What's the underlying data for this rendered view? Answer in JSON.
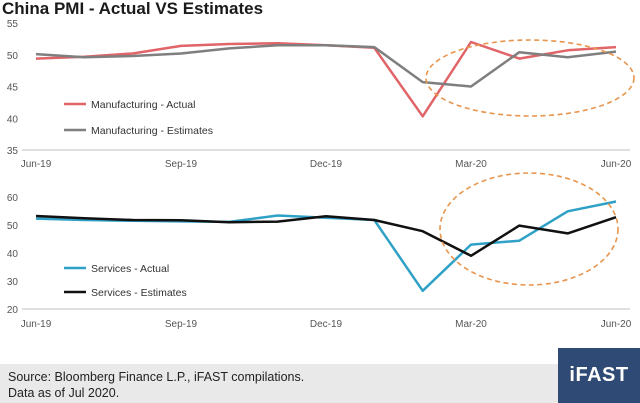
{
  "title": "China PMI - Actual VS Estimates",
  "footer": {
    "source_line": "Source: Bloomberg Finance L.P., iFAST compilations.",
    "date_line": "Data as of Jul 2020."
  },
  "logo_text": "iFAST",
  "colors": {
    "manufacturing_actual": "#e06468",
    "manufacturing_estimates": "#7f7f7f",
    "services_actual": "#2fa1c6",
    "services_estimates": "#111111",
    "highlight_ellipse": "#e8954e",
    "axis": "#bfbfbf",
    "footer_bg": "#e9e9e9",
    "logo_bg": "#2f4a74"
  },
  "chart_data": [
    {
      "type": "line",
      "x": [
        "Jun-19",
        "Jul-19",
        "Aug-19",
        "Sep-19",
        "Oct-19",
        "Nov-19",
        "Dec-19",
        "Jan-20",
        "Feb-20",
        "Mar-20",
        "Apr-20",
        "May-20",
        "Jun-20"
      ],
      "xticks": [
        "Jun-19",
        "Sep-19",
        "Dec-19",
        "Mar-20",
        "Jun-20"
      ],
      "ylim": [
        35,
        55
      ],
      "yticks": [
        35,
        40,
        45,
        50,
        55
      ],
      "legend_position": "left",
      "series": [
        {
          "name": "Manufacturing - Actual",
          "values": [
            49.4,
            49.7,
            50.2,
            51.4,
            51.7,
            51.8,
            51.5,
            51.1,
            40.3,
            52.0,
            49.4,
            50.7,
            51.2
          ]
        },
        {
          "name": "Manufacturing - Estimates",
          "values": [
            50.1,
            49.6,
            49.8,
            50.2,
            51.0,
            51.5,
            51.5,
            51.2,
            45.7,
            45.0,
            50.4,
            49.6,
            50.5
          ]
        }
      ],
      "annotation": "dashed ellipse highlighting Mar-20 to Jun-20"
    },
    {
      "type": "line",
      "x": [
        "Jun-19",
        "Jul-19",
        "Aug-19",
        "Sep-19",
        "Oct-19",
        "Nov-19",
        "Dec-19",
        "Jan-20",
        "Feb-20",
        "Mar-20",
        "Apr-20",
        "May-20",
        "Jun-20"
      ],
      "xticks": [
        "Jun-19",
        "Sep-19",
        "Dec-19",
        "Mar-20",
        "Jun-20"
      ],
      "ylim": [
        20,
        60
      ],
      "yticks": [
        20,
        30,
        40,
        50,
        60
      ],
      "legend_position": "left",
      "series": [
        {
          "name": "Services - Actual",
          "values": [
            52.3,
            51.8,
            51.5,
            51.3,
            51.1,
            53.4,
            52.6,
            51.8,
            26.5,
            43.0,
            44.4,
            54.9,
            58.4
          ]
        },
        {
          "name": "Services - Estimates",
          "values": [
            53.2,
            52.4,
            51.8,
            51.7,
            51.0,
            51.2,
            53.1,
            51.8,
            47.8,
            39.0,
            49.8,
            47.0,
            52.8
          ]
        }
      ],
      "annotation": "dashed ellipse highlighting Mar-20 to Jun-20"
    }
  ]
}
